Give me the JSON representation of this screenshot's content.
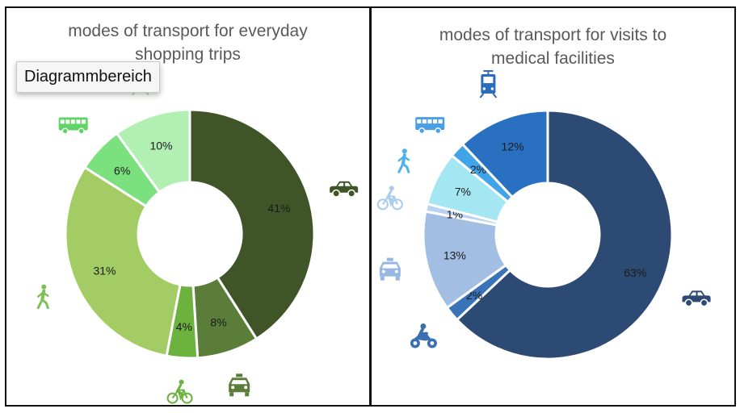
{
  "chart_data": [
    {
      "type": "pie",
      "title": [
        "modes of transport for everyday",
        "shopping trips"
      ],
      "categories": [
        "car",
        "taxi",
        "bicycle",
        "walking",
        "bus",
        "tram"
      ],
      "values": [
        41,
        8,
        4,
        31,
        6,
        10
      ],
      "labels": [
        "41%",
        "8%",
        "4%",
        "31%",
        "6%",
        "10%"
      ],
      "colors": [
        "#3f5528",
        "#5a7e39",
        "#6bb23f",
        "#a3cc64",
        "#7be17e",
        "#b2efb3"
      ],
      "icons": [
        "car-icon",
        "taxi-icon",
        "bicycle-icon",
        "pedestrian-icon",
        "bus-icon",
        "tram-icon"
      ],
      "icon_colors": [
        "#3f5528",
        "#5a7e39",
        "#6bb23f",
        "#7fbf59",
        "#5fd467",
        "#a8e6a9"
      ]
    },
    {
      "type": "pie",
      "title": [
        "modes of transport for visits to",
        "medical facilities"
      ],
      "categories": [
        "car",
        "motorcycle",
        "taxi",
        "bicycle",
        "walking",
        "bus",
        "tram"
      ],
      "values": [
        63,
        2,
        13,
        1,
        7,
        2,
        12
      ],
      "labels": [
        "63%",
        "2%",
        "13%",
        "1%",
        "7%",
        "2%",
        "12%"
      ],
      "colors": [
        "#2c4a73",
        "#3a74b8",
        "#a2bfe3",
        "#bad2ee",
        "#a5e6f3",
        "#42a4e8",
        "#2a70c0"
      ],
      "icons": [
        "car-icon",
        "motorcycle-icon",
        "taxi-icon",
        "bicycle-icon",
        "pedestrian-icon",
        "bus-icon",
        "tram-icon"
      ],
      "icon_colors": [
        "#2c4a73",
        "#3a6fb0",
        "#95b7e2",
        "#a9cbee",
        "#4fb1ec",
        "#4aa0e6",
        "#2a6cc0"
      ]
    }
  ],
  "tooltip": "Diagrammbereich"
}
